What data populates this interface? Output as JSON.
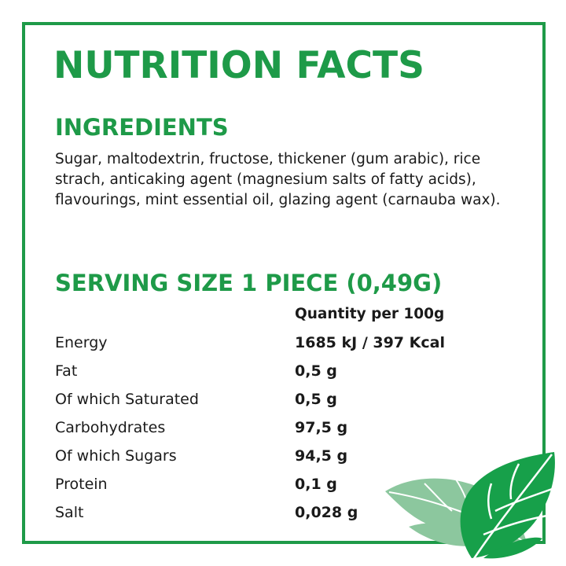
{
  "title": "NUTRITION FACTS",
  "ingredients": {
    "heading": "INGREDIENTS",
    "text": "Sugar, maltodextrin, fructose, thickener (gum arabic), rice strach, anticaking agent (magnesium salts of fatty acids), flavourings, mint essential oil, glazing agent (carnauba wax)."
  },
  "serving": {
    "heading": "SERVING SIZE 1 PIECE (0,49G)",
    "column_header": "Quantity per 100g",
    "rows": [
      {
        "label": "Energy",
        "value": "1685 kJ / 397 Kcal"
      },
      {
        "label": "Fat",
        "value": "0,5 g"
      },
      {
        "label": "Of which Saturated",
        "value": "0,5 g"
      },
      {
        "label": "Carbohydrates",
        "value": "97,5 g"
      },
      {
        "label": "Of which Sugars",
        "value": "94,5 g"
      },
      {
        "label": "Protein",
        "value": "0,1 g"
      },
      {
        "label": "Salt",
        "value": "0,028 g"
      }
    ]
  },
  "colors": {
    "accent": "#1e9a48",
    "leaf_light": "#8cc79e",
    "leaf_dark": "#17a04a"
  },
  "decoration": "mint-leaves-icon"
}
